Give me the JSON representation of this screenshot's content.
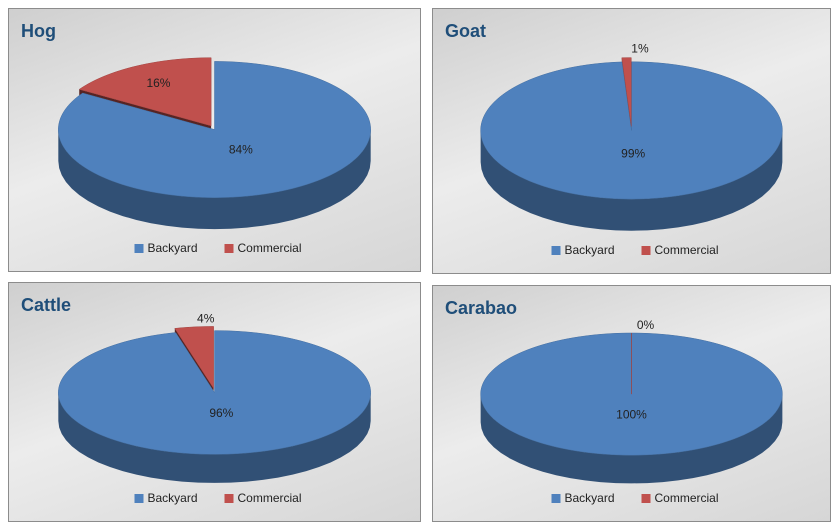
{
  "chart_data": [
    {
      "type": "pie",
      "title": "Hog",
      "categories": [
        "Backyard",
        "Commercial"
      ],
      "values": [
        84,
        16
      ],
      "value_labels": [
        "84%",
        "16%"
      ],
      "colors": [
        "#4f81bd",
        "#c0504d"
      ]
    },
    {
      "type": "pie",
      "title": "Goat",
      "categories": [
        "Backyard",
        "Commercial"
      ],
      "values": [
        99,
        1
      ],
      "value_labels": [
        "99%",
        "1%"
      ],
      "colors": [
        "#4f81bd",
        "#c0504d"
      ]
    },
    {
      "type": "pie",
      "title": "Cattle",
      "categories": [
        "Backyard",
        "Commercial"
      ],
      "values": [
        96,
        4
      ],
      "value_labels": [
        "96%",
        "4%"
      ],
      "colors": [
        "#4f81bd",
        "#c0504d"
      ]
    },
    {
      "type": "pie",
      "title": "Carabao",
      "categories": [
        "Backyard",
        "Commercial"
      ],
      "values": [
        100,
        0
      ],
      "value_labels": [
        "100%",
        "0%"
      ],
      "colors": [
        "#4f81bd",
        "#c0504d"
      ]
    }
  ]
}
